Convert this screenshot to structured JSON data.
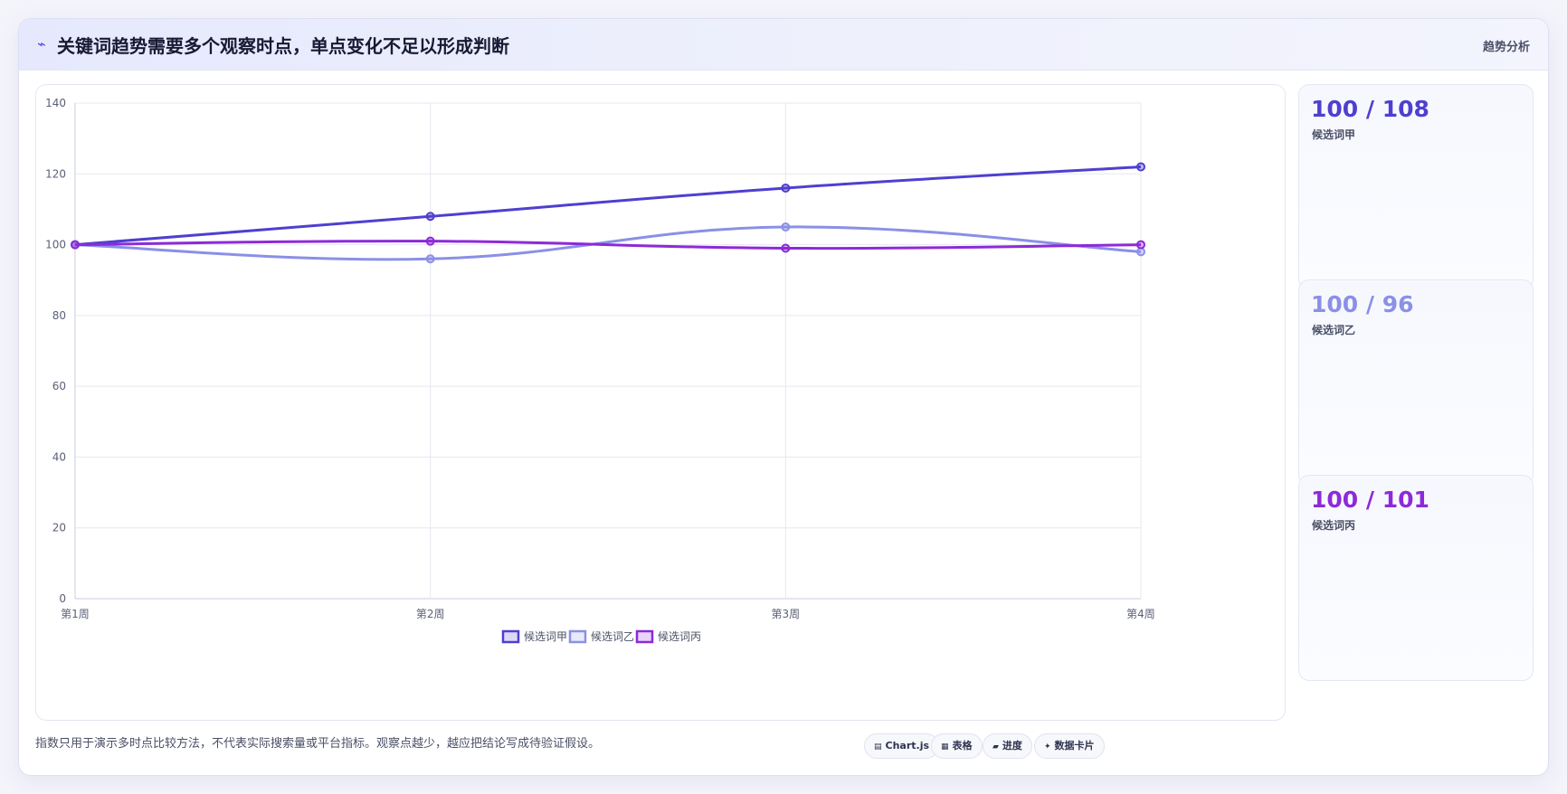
{
  "header": {
    "icon": "trend-line-icon",
    "title": "关键词趋势需要多个观察时点，单点变化不足以形成判断",
    "tag": "趋势分析"
  },
  "chart_data": {
    "type": "line",
    "categories": [
      "第1周",
      "第2周",
      "第3周",
      "第4周"
    ],
    "series": [
      {
        "name": "候选词甲",
        "values": [
          100,
          108,
          116,
          122
        ],
        "color": "#4f3fd0"
      },
      {
        "name": "候选词乙",
        "values": [
          100,
          96,
          105,
          98
        ],
        "color": "#8a90e6"
      },
      {
        "name": "候选词丙",
        "values": [
          100,
          101,
          99,
          100
        ],
        "color": "#8d2ad8"
      }
    ],
    "ylim": [
      0,
      140
    ],
    "yticks": [
      0,
      20,
      40,
      60,
      80,
      100,
      120,
      140
    ],
    "grid": true,
    "legend": "bottom-center",
    "title": "",
    "xlabel": "",
    "ylabel": ""
  },
  "cards": [
    {
      "value": "100 / 108",
      "label": "候选词甲",
      "color": "#4f3fd0"
    },
    {
      "value": "100 / 96",
      "label": "候选词乙",
      "color": "#8a90e6"
    },
    {
      "value": "100 / 101",
      "label": "候选词丙",
      "color": "#8d2ad8"
    }
  ],
  "footnote": "指数只用于演示多时点比较方法，不代表实际搜索量或平台指标。观察点越少，越应把结论写成待验证假设。",
  "badges": [
    {
      "icon": "chart-icon",
      "glyph": "▤",
      "label": "Chart.js"
    },
    {
      "icon": "table-icon",
      "glyph": "▦",
      "label": "表格"
    },
    {
      "icon": "progress-icon",
      "glyph": "▰",
      "label": "进度"
    },
    {
      "icon": "sparkle-icon",
      "glyph": "✦",
      "label": "数据卡片"
    }
  ]
}
